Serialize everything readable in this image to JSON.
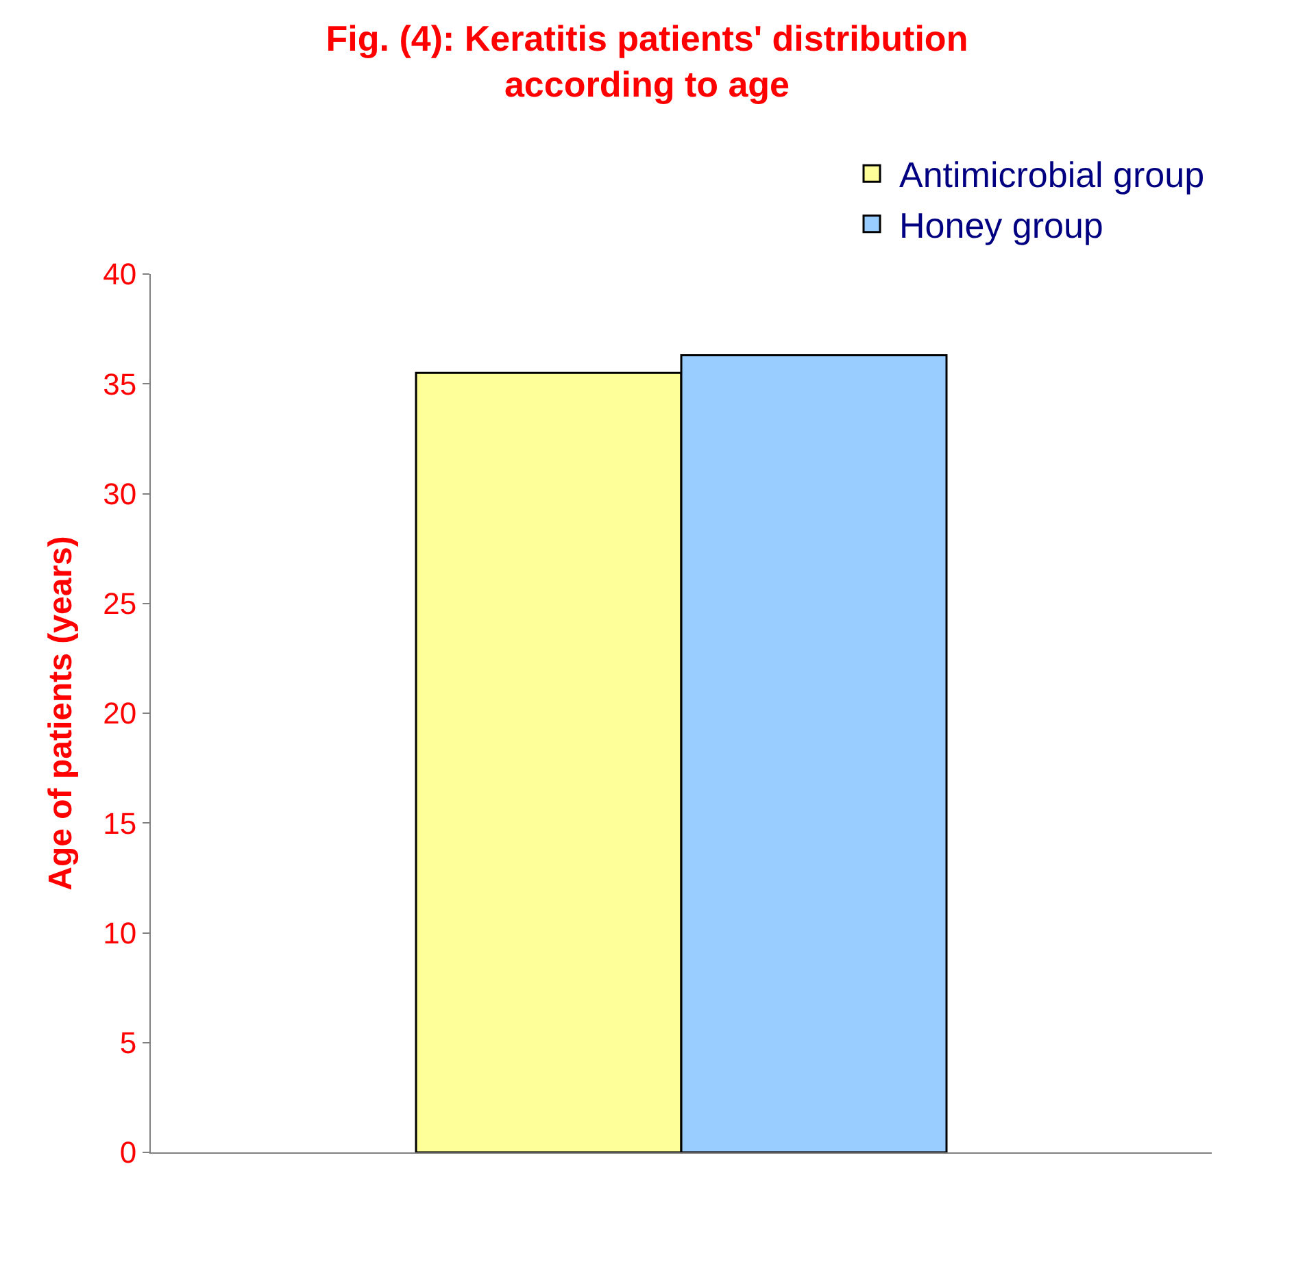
{
  "chart_data": {
    "type": "bar",
    "title": "Fig. (4): Keratitis patients' distribution according to age",
    "ylabel": "Age of patients (years)",
    "categories": [
      null
    ],
    "series": [
      {
        "name": "Antimicrobial group",
        "color": "#ffff99",
        "values": [
          35.5
        ]
      },
      {
        "name": "Honey group",
        "color": "#99ccff",
        "values": [
          36.3
        ]
      }
    ],
    "ylim": [
      0,
      40
    ],
    "yticks": [
      0,
      5,
      10,
      15,
      20,
      25,
      30,
      35,
      40
    ],
    "legend": "top right",
    "tick_labels": "y"
  }
}
